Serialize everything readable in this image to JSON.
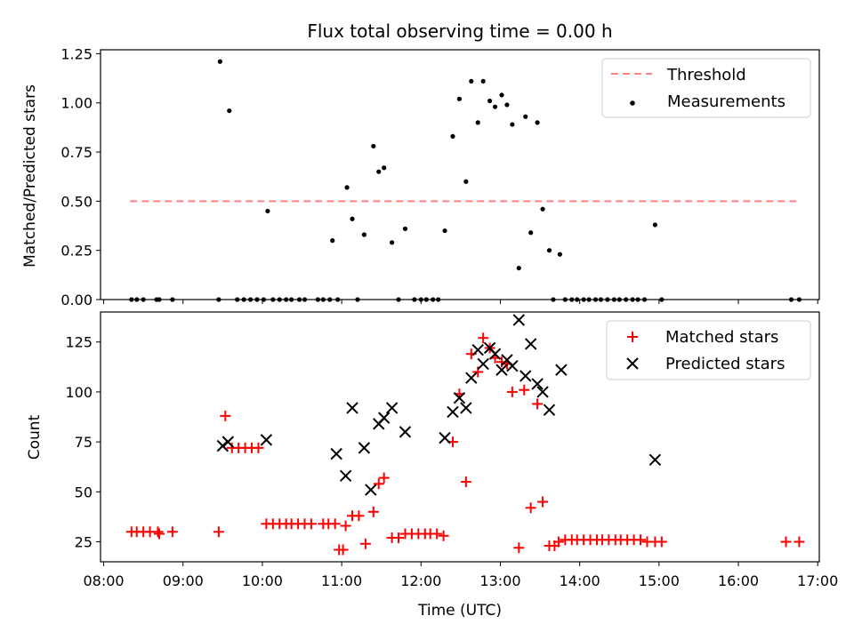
{
  "chart_data": [
    {
      "type": "scatter",
      "title": "Flux total observing time = 0.00 h",
      "xlabel": "",
      "ylabel": "Matched/Predicted stars",
      "xlim": [
        "08:00",
        "17:00"
      ],
      "ylim": [
        0,
        1.27
      ],
      "xticks": [
        "08:00",
        "09:00",
        "10:00",
        "11:00",
        "12:00",
        "13:00",
        "14:00",
        "15:00",
        "16:00",
        "17:00"
      ],
      "xtick_labels_visible": false,
      "yticks": [
        0.0,
        0.25,
        0.5,
        0.75,
        1.0,
        1.25
      ],
      "ytick_labels": [
        "0.00",
        "0.25",
        "0.50",
        "0.75",
        "1.00",
        "1.25"
      ],
      "legend": {
        "position": "upper right",
        "entries": [
          "Threshold",
          "Measurements"
        ]
      },
      "threshold": {
        "name": "Threshold",
        "y": 0.5,
        "x_range": [
          "08:20",
          "16:45"
        ],
        "style": "dashed",
        "color": "#ff8080"
      },
      "series": [
        {
          "name": "Measurements",
          "color": "#000000",
          "marker": "dot",
          "points": [
            [
              "08:21",
              0
            ],
            [
              "08:25",
              0
            ],
            [
              "08:30",
              0
            ],
            [
              "08:40",
              0
            ],
            [
              "08:42",
              0
            ],
            [
              "08:52",
              0
            ],
            [
              "09:28",
              1.21
            ],
            [
              "09:35",
              0.96
            ],
            [
              "09:27",
              0
            ],
            [
              "09:41",
              0
            ],
            [
              "09:46",
              0
            ],
            [
              "09:51",
              0
            ],
            [
              "09:56",
              0
            ],
            [
              "10:01",
              0
            ],
            [
              "10:04",
              0.45
            ],
            [
              "10:08",
              0
            ],
            [
              "10:13",
              0
            ],
            [
              "10:18",
              0
            ],
            [
              "10:22",
              0
            ],
            [
              "10:28",
              0
            ],
            [
              "10:32",
              0
            ],
            [
              "10:42",
              0
            ],
            [
              "10:46",
              0
            ],
            [
              "10:51",
              0
            ],
            [
              "10:53",
              0.3
            ],
            [
              "10:57",
              0
            ],
            [
              "11:04",
              0.57
            ],
            [
              "11:08",
              0.41
            ],
            [
              "11:12",
              0
            ],
            [
              "11:17",
              0.33
            ],
            [
              "11:24",
              0.78
            ],
            [
              "11:28",
              0.65
            ],
            [
              "11:32",
              0.67
            ],
            [
              "11:38",
              0.29
            ],
            [
              "11:43",
              0
            ],
            [
              "11:48",
              0.36
            ],
            [
              "11:55",
              0
            ],
            [
              "12:00",
              0
            ],
            [
              "12:04",
              0
            ],
            [
              "12:09",
              0
            ],
            [
              "12:13",
              0
            ],
            [
              "12:18",
              0.35
            ],
            [
              "12:24",
              0.83
            ],
            [
              "12:29",
              1.02
            ],
            [
              "12:34",
              0.6
            ],
            [
              "12:38",
              1.11
            ],
            [
              "12:43",
              0.9
            ],
            [
              "12:47",
              1.11
            ],
            [
              "12:52",
              1.01
            ],
            [
              "12:56",
              0.98
            ],
            [
              "13:01",
              1.04
            ],
            [
              "13:05",
              0.99
            ],
            [
              "13:09",
              0.89
            ],
            [
              "13:14",
              0.16
            ],
            [
              "13:19",
              0.93
            ],
            [
              "13:23",
              0.34
            ],
            [
              "13:28",
              0.9
            ],
            [
              "13:32",
              0.46
            ],
            [
              "13:37",
              0.25
            ],
            [
              "13:40",
              0
            ],
            [
              "13:45",
              0.23
            ],
            [
              "13:49",
              0
            ],
            [
              "13:54",
              0
            ],
            [
              "13:58",
              0
            ],
            [
              "14:03",
              0
            ],
            [
              "14:07",
              0
            ],
            [
              "14:12",
              0
            ],
            [
              "14:16",
              0
            ],
            [
              "14:21",
              0
            ],
            [
              "14:26",
              0
            ],
            [
              "14:30",
              0
            ],
            [
              "14:35",
              0
            ],
            [
              "14:40",
              0
            ],
            [
              "14:44",
              0
            ],
            [
              "14:49",
              0
            ],
            [
              "14:57",
              0.38
            ],
            [
              "15:02",
              0
            ],
            [
              "16:40",
              0
            ],
            [
              "16:46",
              0
            ]
          ]
        }
      ]
    },
    {
      "type": "scatter",
      "title": "",
      "xlabel": "Time (UTC)",
      "ylabel": "Count",
      "xlim": [
        "08:00",
        "17:00"
      ],
      "ylim": [
        15,
        140
      ],
      "xticks": [
        "08:00",
        "09:00",
        "10:00",
        "11:00",
        "12:00",
        "13:00",
        "14:00",
        "15:00",
        "16:00",
        "17:00"
      ],
      "yticks": [
        25,
        50,
        75,
        100,
        125
      ],
      "ytick_labels": [
        "25",
        "50",
        "75",
        "100",
        "125"
      ],
      "legend": {
        "position": "upper right",
        "entries": [
          "Matched stars",
          "Predicted stars"
        ]
      },
      "series": [
        {
          "name": "Matched stars",
          "color": "#ff0000",
          "marker": "plus",
          "points": [
            [
              "08:21",
              30
            ],
            [
              "08:25",
              30
            ],
            [
              "08:30",
              30
            ],
            [
              "08:35",
              30
            ],
            [
              "08:41",
              30
            ],
            [
              "08:42",
              29
            ],
            [
              "08:52",
              30
            ],
            [
              "09:27",
              30
            ],
            [
              "09:32",
              88
            ],
            [
              "09:37",
              72
            ],
            [
              "09:42",
              72
            ],
            [
              "09:47",
              72
            ],
            [
              "09:52",
              72
            ],
            [
              "09:57",
              72
            ],
            [
              "10:03",
              34
            ],
            [
              "10:08",
              34
            ],
            [
              "10:13",
              34
            ],
            [
              "10:18",
              34
            ],
            [
              "10:22",
              34
            ],
            [
              "10:27",
              34
            ],
            [
              "10:32",
              34
            ],
            [
              "10:37",
              34
            ],
            [
              "10:46",
              34
            ],
            [
              "10:50",
              34
            ],
            [
              "10:55",
              34
            ],
            [
              "10:58",
              21
            ],
            [
              "11:01",
              21
            ],
            [
              "11:03",
              33
            ],
            [
              "11:08",
              38
            ],
            [
              "11:13",
              38
            ],
            [
              "11:18",
              24
            ],
            [
              "11:24",
              40
            ],
            [
              "11:28",
              54
            ],
            [
              "11:32",
              57
            ],
            [
              "11:38",
              27
            ],
            [
              "11:43",
              27
            ],
            [
              "11:48",
              29
            ],
            [
              "11:53",
              29
            ],
            [
              "11:58",
              29
            ],
            [
              "12:03",
              29
            ],
            [
              "12:07",
              29
            ],
            [
              "12:12",
              29
            ],
            [
              "12:17",
              28
            ],
            [
              "12:24",
              75
            ],
            [
              "12:29",
              99
            ],
            [
              "12:34",
              55
            ],
            [
              "12:38",
              119
            ],
            [
              "12:43",
              110
            ],
            [
              "12:47",
              127
            ],
            [
              "12:52",
              122
            ],
            [
              "12:56",
              117
            ],
            [
              "13:01",
              115
            ],
            [
              "13:05",
              114
            ],
            [
              "13:09",
              100
            ],
            [
              "13:14",
              22
            ],
            [
              "13:18",
              101
            ],
            [
              "13:23",
              42
            ],
            [
              "13:28",
              94
            ],
            [
              "13:32",
              45
            ],
            [
              "13:37",
              23
            ],
            [
              "13:41",
              23
            ],
            [
              "13:44",
              25
            ],
            [
              "13:49",
              26
            ],
            [
              "13:54",
              26
            ],
            [
              "13:58",
              26
            ],
            [
              "14:03",
              26
            ],
            [
              "14:08",
              26
            ],
            [
              "14:13",
              26
            ],
            [
              "14:17",
              26
            ],
            [
              "14:22",
              26
            ],
            [
              "14:27",
              26
            ],
            [
              "14:31",
              26
            ],
            [
              "14:36",
              26
            ],
            [
              "14:41",
              26
            ],
            [
              "14:46",
              26
            ],
            [
              "14:51",
              25
            ],
            [
              "14:57",
              25
            ],
            [
              "15:02",
              25
            ],
            [
              "16:36",
              25
            ],
            [
              "16:46",
              25
            ]
          ]
        },
        {
          "name": "Predicted stars",
          "color": "#000000",
          "marker": "x",
          "points": [
            [
              "09:30",
              73
            ],
            [
              "09:34",
              75
            ],
            [
              "10:03",
              76
            ],
            [
              "10:56",
              69
            ],
            [
              "11:03",
              58
            ],
            [
              "11:08",
              92
            ],
            [
              "11:17",
              72
            ],
            [
              "11:22",
              51
            ],
            [
              "11:28",
              84
            ],
            [
              "11:32",
              87
            ],
            [
              "11:38",
              92
            ],
            [
              "11:48",
              80
            ],
            [
              "12:18",
              77
            ],
            [
              "12:24",
              90
            ],
            [
              "12:29",
              97
            ],
            [
              "12:34",
              92
            ],
            [
              "12:38",
              107
            ],
            [
              "12:43",
              121
            ],
            [
              "12:47",
              114
            ],
            [
              "12:52",
              122
            ],
            [
              "12:56",
              119
            ],
            [
              "13:01",
              111
            ],
            [
              "13:05",
              116
            ],
            [
              "13:09",
              113
            ],
            [
              "13:14",
              136
            ],
            [
              "13:19",
              108
            ],
            [
              "13:23",
              124
            ],
            [
              "13:28",
              104
            ],
            [
              "13:32",
              100
            ],
            [
              "13:37",
              91
            ],
            [
              "13:46",
              111
            ],
            [
              "14:57",
              66
            ]
          ]
        }
      ]
    }
  ]
}
